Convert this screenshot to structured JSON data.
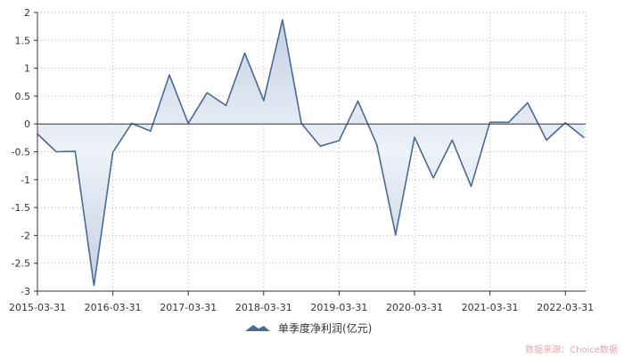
{
  "chart_data": {
    "type": "area",
    "title": "",
    "xlabel": "",
    "ylabel": "",
    "ylim": [
      -3,
      2
    ],
    "y_ticks": [
      "2",
      "1.5",
      "1",
      "0.5",
      "0",
      "-0.5",
      "-1",
      "-1.5",
      "-2",
      "-2.5",
      "-3"
    ],
    "x_ticks": [
      "2015-03-31",
      "2016-03-31",
      "2017-03-31",
      "2018-03-31",
      "2019-03-31",
      "2020-03-31",
      "2021-03-31",
      "2022-03-31"
    ],
    "grid": true,
    "legend_position": "bottom-center",
    "series": [
      {
        "name": "单季度净利润(亿元)",
        "color": "#4a6a94",
        "fill": "#cfd9e8",
        "x": [
          "2015-03-31",
          "2015-06-30",
          "2015-09-30",
          "2015-12-31",
          "2016-03-31",
          "2016-06-30",
          "2016-09-30",
          "2016-12-31",
          "2017-03-31",
          "2017-06-30",
          "2017-09-30",
          "2017-12-31",
          "2018-03-31",
          "2018-06-30",
          "2018-09-30",
          "2018-12-31",
          "2019-03-31",
          "2019-06-30",
          "2019-09-30",
          "2019-12-31",
          "2020-03-31",
          "2020-06-30",
          "2020-09-30",
          "2020-12-31",
          "2021-03-31",
          "2021-06-30",
          "2021-09-30",
          "2021-12-31",
          "2022-03-31",
          "2022-06-30"
        ],
        "values": [
          -0.18,
          -0.5,
          -0.49,
          -2.9,
          -0.51,
          0.01,
          -0.13,
          0.88,
          0.01,
          0.56,
          0.33,
          1.27,
          0.42,
          1.87,
          0.01,
          -0.4,
          -0.3,
          0.41,
          -0.37,
          -1.99,
          -0.24,
          -0.97,
          -0.29,
          -1.12,
          0.03,
          0.03,
          0.38,
          -0.29,
          0.02,
          -0.25
        ]
      }
    ]
  },
  "watermark": "数据来源：Choice数据"
}
